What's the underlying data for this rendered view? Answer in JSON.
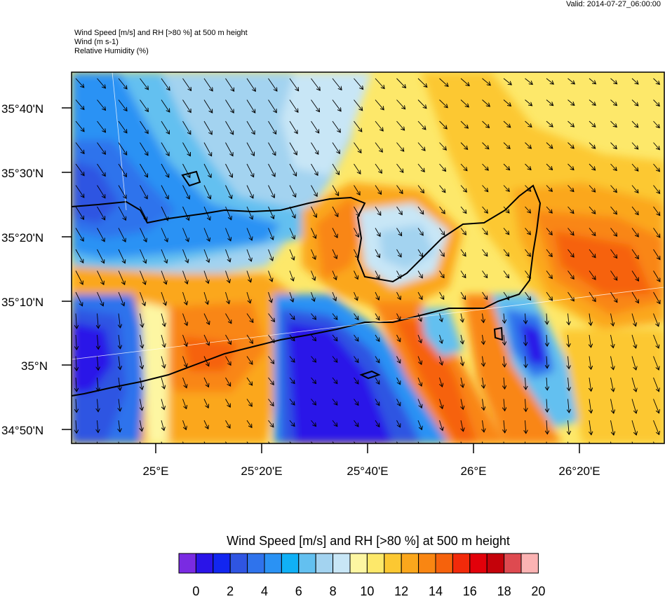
{
  "header": {
    "valid": "Valid: 2014-07-27_06:00:00",
    "title_lines": [
      "Wind Speed [m/s] and RH [>80 %] at 500 m height",
      "Wind   (m s-1)",
      "Relative Humidity   (%)"
    ]
  },
  "map": {
    "lat_labels": [
      "35°40'N",
      "35°30'N",
      "35°20'N",
      "35°10'N",
      "35°N",
      "34°50'N"
    ],
    "lon_labels": [
      "25°E",
      "25°20'E",
      "25°40'E",
      "26°E",
      "26°20'E"
    ],
    "lat_range": [
      34.8,
      35.75
    ],
    "lon_range": [
      24.7,
      26.55
    ]
  },
  "colorbar": {
    "title": "Wind Speed [m/s] and RH [>80 %] at 500 m height",
    "colors": [
      "#7a2be2",
      "#2a14e8",
      "#1226f0",
      "#2f55e2",
      "#2f73ec",
      "#2a92f4",
      "#10b0f6",
      "#63c0f0",
      "#a3d3f0",
      "#c8e6f6",
      "#fdf6a2",
      "#fde86a",
      "#fcc832",
      "#fba71c",
      "#f98612",
      "#f6620c",
      "#f22a0a",
      "#e2010a",
      "#c4020a",
      "#de4a50",
      "#fbb3b3"
    ],
    "tick_labels": [
      "0",
      "2",
      "4",
      "6",
      "8",
      "10",
      "12",
      "14",
      "16",
      "18",
      "20"
    ]
  }
}
